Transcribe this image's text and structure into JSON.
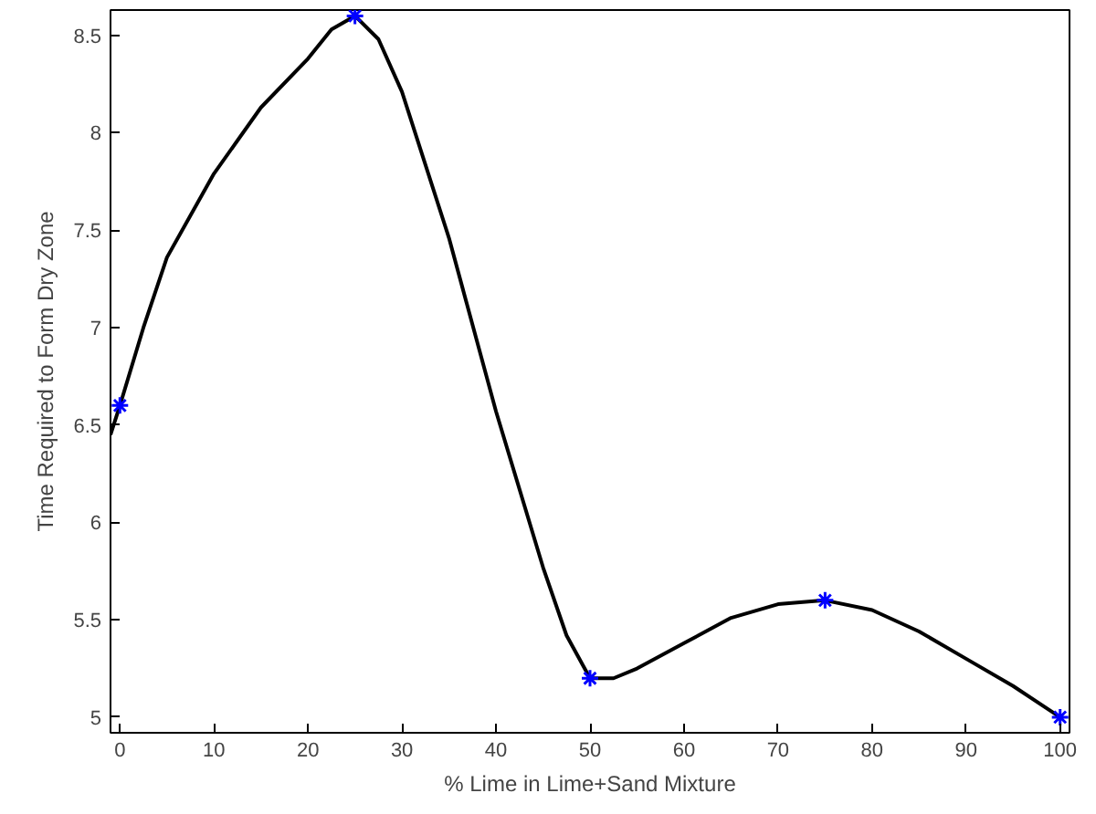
{
  "chart_data": {
    "type": "scatter",
    "xlabel": "% Lime in Lime+Sand Mixture",
    "ylabel": "Time Required to Form Dry Zone",
    "xlim": [
      -1,
      101
    ],
    "ylim": [
      4.92,
      8.63
    ],
    "xticks": [
      0,
      10,
      20,
      30,
      40,
      50,
      60,
      70,
      80,
      90,
      100
    ],
    "yticks": [
      5,
      {
        "value": 5.5,
        "label": "5.5"
      },
      6,
      {
        "value": 6.5,
        "label": "6.5"
      },
      7,
      {
        "value": 7.5,
        "label": "7.5"
      },
      8,
      {
        "value": 8.5,
        "label": "8.5"
      }
    ],
    "grid": false,
    "series": [
      {
        "type": "line",
        "color": "#000000",
        "marker": "none",
        "line_style": "solid",
        "x": [
          -1,
          0,
          2.5,
          5,
          10,
          15,
          20,
          22.5,
          25,
          27.5,
          30,
          35,
          40,
          45,
          47.5,
          50,
          52.5,
          55,
          60,
          65,
          70,
          75,
          80,
          85,
          90,
          95,
          100
        ],
        "values": [
          6.45,
          6.6,
          7.0,
          7.36,
          7.79,
          8.13,
          8.38,
          8.53,
          8.6,
          8.48,
          8.21,
          7.46,
          6.57,
          5.77,
          5.42,
          5.2,
          5.2,
          5.25,
          5.38,
          5.51,
          5.58,
          5.6,
          5.55,
          5.44,
          5.3,
          5.16,
          5.0
        ]
      },
      {
        "color": "#0000ff",
        "marker": "cross",
        "x": [
          0,
          25,
          50,
          75,
          100
        ],
        "values": [
          6.6,
          8.6,
          5.2,
          5.6,
          5.0
        ]
      }
    ]
  }
}
